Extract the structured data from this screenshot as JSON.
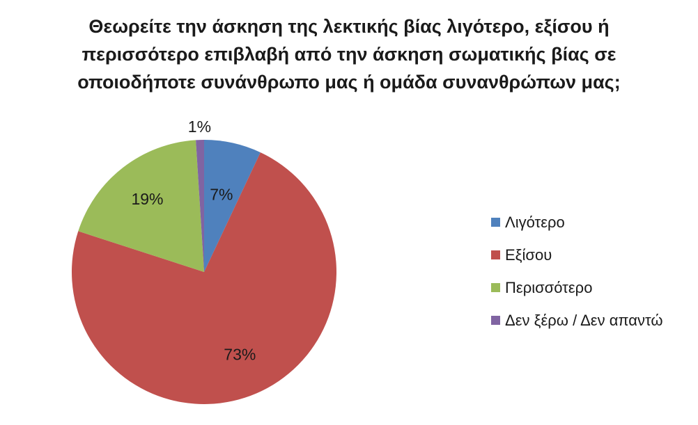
{
  "chart_data": {
    "type": "pie",
    "title_lines": [
      "Θεωρείτε την άσκηση της λεκτικής βίας λιγότερο, εξίσου ή",
      "περισσότερο επιβλαβή από την άσκηση σωματικής βίας σε",
      "οποιοδήποτε συνάνθρωπο μας ή ομάδα συνανθρώπων μας;"
    ],
    "categories": [
      "Λιγότερο",
      "Εξίσου",
      "Περισσότερο",
      "Δεν ξέρω / Δεν απαντώ"
    ],
    "values": [
      7,
      73,
      19,
      1
    ],
    "data_labels": [
      "7%",
      "73%",
      "19%",
      "1%"
    ],
    "colors": [
      "#4F81BD",
      "#C0504D",
      "#9BBB59",
      "#8064A2"
    ],
    "legend_position": "right"
  }
}
